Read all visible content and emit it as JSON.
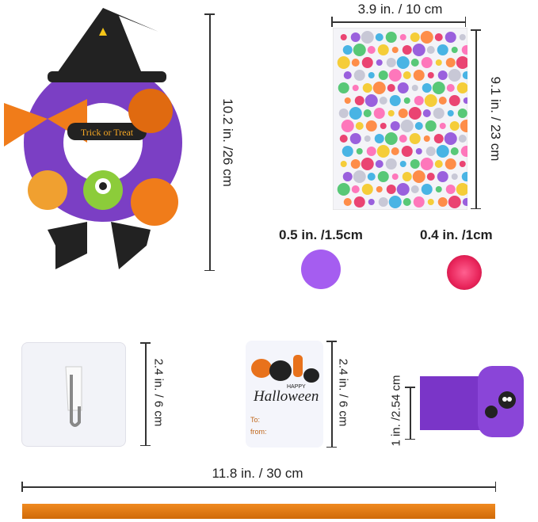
{
  "wreath": {
    "text": "Trick or Treat",
    "size_label": "10.2 in. /26 cm"
  },
  "stickers": {
    "width_label": "3.9 in. / 10 cm",
    "height_label": "9.1 in. / 23 cm"
  },
  "dot": {
    "label": "0.5 in. /1.5cm",
    "color": "#a55df0"
  },
  "pompom": {
    "label": "0.4 in. /1cm",
    "color": "#e8245a"
  },
  "hook": {
    "label": "2.4 in. / 6 cm"
  },
  "tag": {
    "happy": "HAPPY",
    "title": "Halloween",
    "to": "To:",
    "from": "from:",
    "label": "2.4 in. / 6 cm"
  },
  "ribbon": {
    "label": "1 in. /2.54 cm",
    "color": "#7a35c8"
  },
  "cord": {
    "label": "11.8 in. / 30 cm",
    "color": "#e07a10"
  }
}
